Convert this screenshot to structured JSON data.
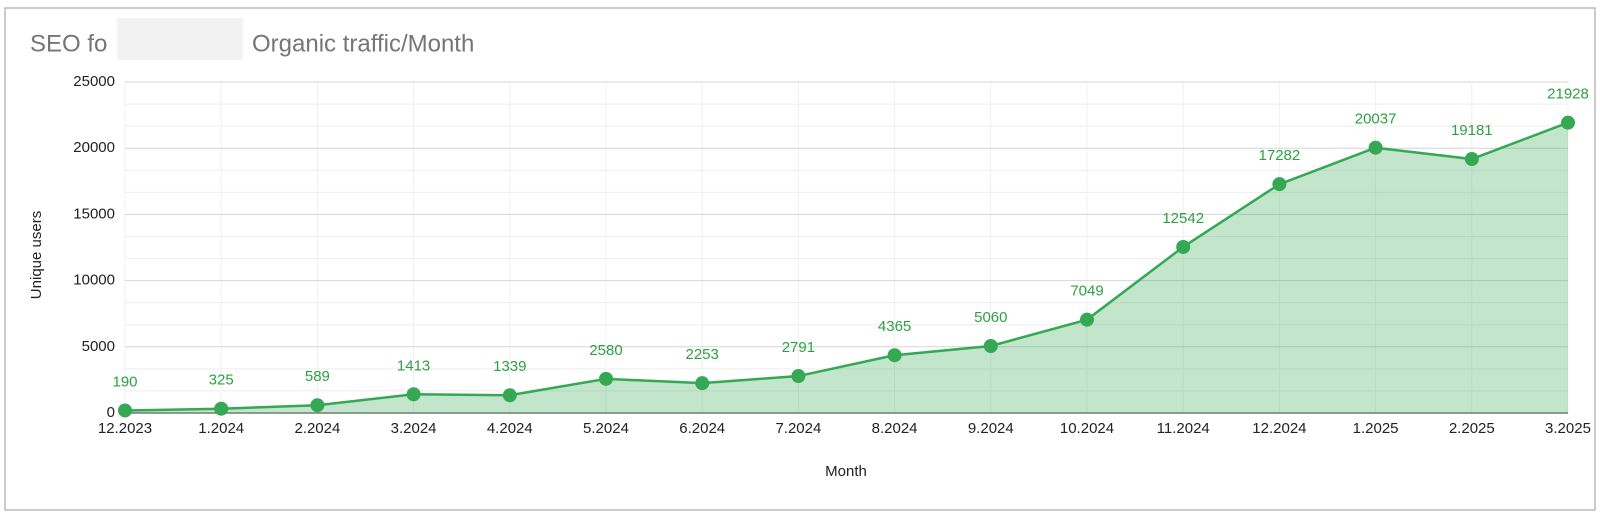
{
  "chart_data": {
    "type": "area",
    "title": [
      "SEO fo",
      "Organic traffic/Month"
    ],
    "x_label": "Month",
    "y_label": "Unique users",
    "categories": [
      "12.2023",
      "1.2024",
      "2.2024",
      "3.2024",
      "4.2024",
      "5.2024",
      "6.2024",
      "7.2024",
      "8.2024",
      "9.2024",
      "10.2024",
      "11.2024",
      "12.2024",
      "1.2025",
      "2.2025",
      "3.2025"
    ],
    "series": [
      {
        "name": "Unique users",
        "color": "#34a853",
        "values": [
          190,
          325,
          589,
          1413,
          1339,
          2580,
          2253,
          2791,
          4365,
          5060,
          7049,
          12542,
          17282,
          20037,
          19181,
          21928
        ]
      }
    ],
    "ylim": [
      0,
      25000
    ],
    "yticks": [
      0,
      5000,
      10000,
      15000,
      20000,
      25000
    ],
    "grid": true
  }
}
